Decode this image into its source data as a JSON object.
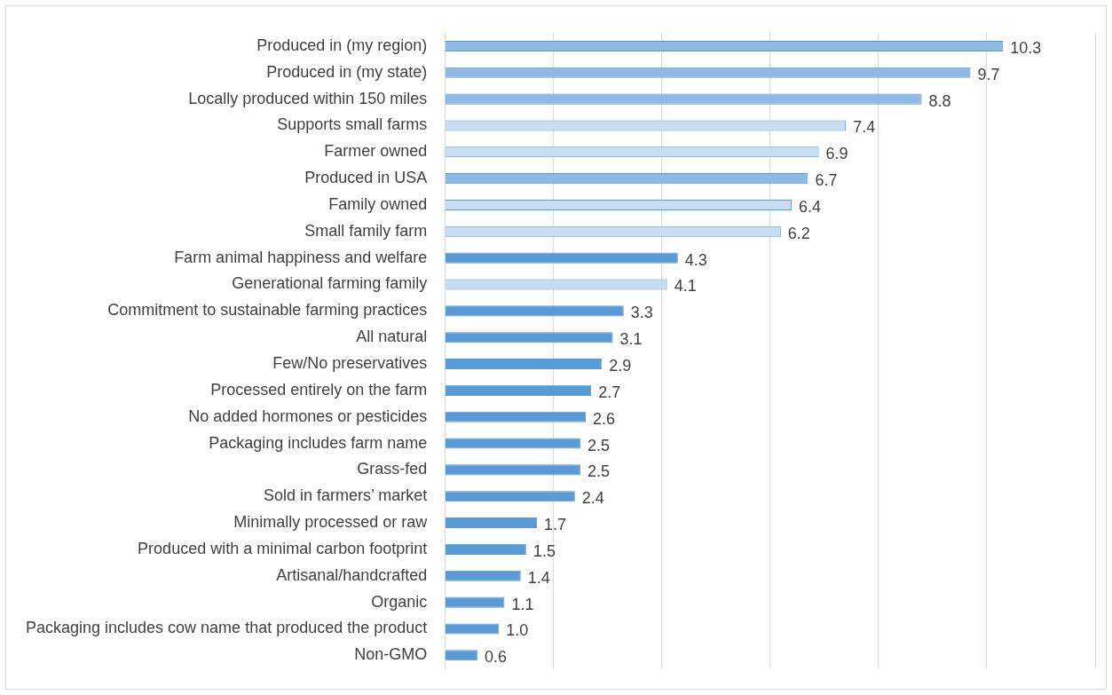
{
  "chart_data": {
    "type": "bar",
    "orientation": "horizontal",
    "categories": [
      "Produced in (my region)",
      "Produced in (my state)",
      "Locally produced within 150 miles",
      "Supports small farms",
      "Farmer owned",
      "Produced in USA",
      "Family owned",
      "Small family farm",
      "Farm animal happiness and welfare",
      "Generational farming family",
      "Commitment to sustainable farming practices",
      "All natural",
      "Few/No preservatives",
      "Processed entirely on the farm",
      "No added hormones or pesticides",
      "Packaging includes farm name",
      "Grass-fed",
      "Sold in farmers’ market",
      "Minimally processed or raw",
      "Produced with a minimal carbon footprint",
      "Artisanal/handcrafted",
      "Organic",
      "Packaging includes cow name that produced the product",
      "Non-GMO"
    ],
    "values": [
      10.3,
      9.7,
      8.8,
      7.4,
      6.9,
      6.7,
      6.4,
      6.2,
      4.3,
      4.1,
      3.3,
      3.1,
      2.9,
      2.7,
      2.6,
      2.5,
      2.5,
      2.4,
      1.7,
      1.5,
      1.4,
      1.1,
      1.0,
      0.6
    ],
    "value_labels": [
      "10.3",
      "9.7",
      "8.8",
      "7.4",
      "6.9",
      "6.7",
      "6.4",
      "6.2",
      "4.3",
      "4.1",
      "3.3",
      "3.1",
      "2.9",
      "2.7",
      "2.6",
      "2.5",
      "2.5",
      "2.4",
      "1.7",
      "1.5",
      "1.4",
      "1.1",
      "1.0",
      "0.6"
    ],
    "colors": [
      "#8fb8e3",
      "#8fb8e3",
      "#8fb8e3",
      "#c9ddf2",
      "#c9ddf2",
      "#8fb8e3",
      "#c9ddf2",
      "#c9ddf2",
      "#5b9bd5",
      "#c9ddf2",
      "#5b9bd5",
      "#5b9bd5",
      "#5b9bd5",
      "#5b9bd5",
      "#5b9bd5",
      "#5b9bd5",
      "#5b9bd5",
      "#5b9bd5",
      "#5b9bd5",
      "#5b9bd5",
      "#5b9bd5",
      "#5b9bd5",
      "#5b9bd5",
      "#5b9bd5"
    ],
    "xlim": [
      0,
      12
    ],
    "xticks": [
      {
        "value": 0,
        "label": null
      },
      {
        "value": 2,
        "label": null
      },
      {
        "value": 4,
        "label": null
      },
      {
        "value": 6,
        "label": null
      },
      {
        "value": 8,
        "label": null
      },
      {
        "value": 10,
        "label": null
      },
      {
        "value": 12,
        "label": null
      }
    ],
    "grid": "x",
    "tick_labels": "y",
    "legend": false
  }
}
